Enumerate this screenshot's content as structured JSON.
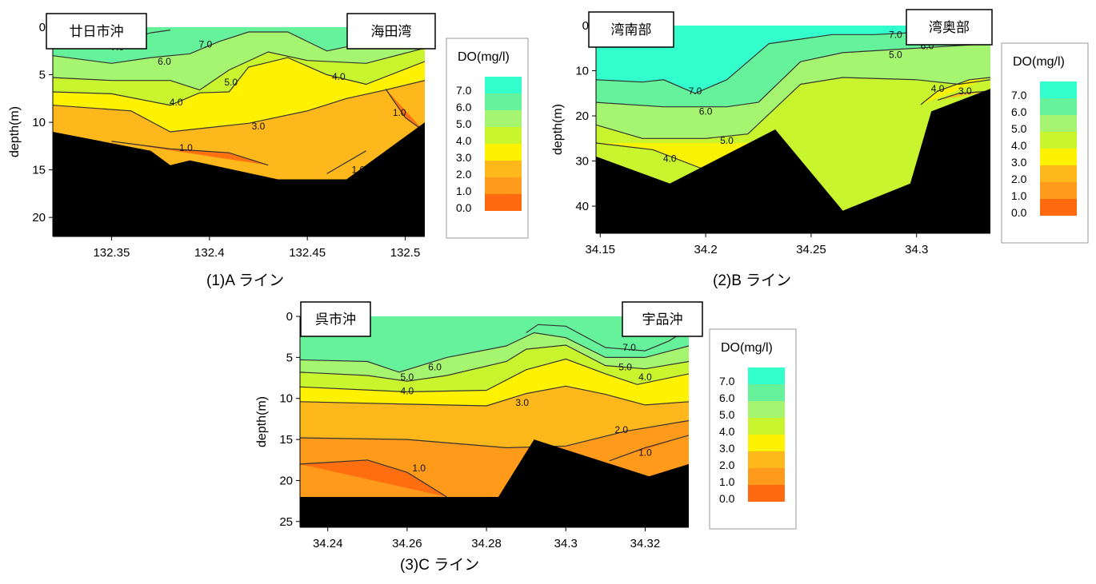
{
  "colors": {
    "do_scale": [
      "#ff6a10",
      "#ff9a1a",
      "#ffb81c",
      "#fff200",
      "#c8f52e",
      "#a6f570",
      "#66f29a",
      "#33ffcc"
    ],
    "seabed": "#000000",
    "contour_line": "#333333"
  },
  "legend": {
    "title": "DO(mg/l)",
    "levels": [
      "7.0",
      "6.0",
      "5.0",
      "4.0",
      "3.0",
      "2.0",
      "1.0",
      "0.0"
    ]
  },
  "chart_data": [
    {
      "type": "area",
      "caption": "(1)A ライン",
      "stations": [
        "廿日市沖",
        "海田湾"
      ],
      "ylabel": "depth(m)",
      "xlabel": "",
      "xlim": [
        132.32,
        132.51
      ],
      "ylim": [
        22,
        0
      ],
      "y_reversed": true,
      "xticks": [
        "132.35",
        "132.4",
        "132.45",
        "132.5"
      ],
      "xtick_values": [
        132.35,
        132.4,
        132.45,
        132.5
      ],
      "yticks": [
        "0",
        "5",
        "10",
        "15",
        "20"
      ],
      "ytick_values": [
        0,
        5,
        10,
        15,
        20
      ],
      "bottom_depth": [
        [
          132.32,
          11
        ],
        [
          132.37,
          13
        ],
        [
          132.38,
          14.5
        ],
        [
          132.39,
          14
        ],
        [
          132.435,
          16
        ],
        [
          132.47,
          16
        ],
        [
          132.51,
          10
        ]
      ],
      "isolines": [
        {
          "level": 7.0,
          "points": [
            [
              132.32,
              1.8
            ],
            [
              132.345,
              2
            ],
            [
              132.36,
              1.2
            ],
            [
              132.37,
              0.6
            ],
            [
              132.38,
              0.3
            ]
          ]
        },
        {
          "level": 6.0,
          "points": [
            [
              132.32,
              3
            ],
            [
              132.35,
              3.8
            ],
            [
              132.37,
              3.2
            ],
            [
              132.39,
              2.8
            ],
            [
              132.405,
              1.5
            ],
            [
              132.42,
              0.5
            ],
            [
              132.44,
              0.5
            ],
            [
              132.46,
              2.5
            ],
            [
              132.49,
              1.2
            ],
            [
              132.51,
              0.4
            ]
          ]
        },
        {
          "level": 5.0,
          "points": [
            [
              132.32,
              5.3
            ],
            [
              132.35,
              5.6
            ],
            [
              132.38,
              5.6
            ],
            [
              132.395,
              6.6
            ],
            [
              132.41,
              4.5
            ],
            [
              132.43,
              2.6
            ],
            [
              132.45,
              3.5
            ],
            [
              132.48,
              3.8
            ],
            [
              132.51,
              2.2
            ]
          ]
        },
        {
          "level": 4.0,
          "points": [
            [
              132.32,
              6.8
            ],
            [
              132.35,
              7
            ],
            [
              132.38,
              8.2
            ],
            [
              132.395,
              6.9
            ],
            [
              132.41,
              6.8
            ],
            [
              132.42,
              4.2
            ],
            [
              132.44,
              3.2
            ],
            [
              132.46,
              5
            ],
            [
              132.48,
              6
            ],
            [
              132.51,
              3.6
            ]
          ]
        },
        {
          "level": 3.0,
          "points": [
            [
              132.32,
              8.2
            ],
            [
              132.36,
              8.8
            ],
            [
              132.38,
              11
            ],
            [
              132.42,
              10.1
            ],
            [
              132.45,
              8.8
            ],
            [
              132.47,
              7.5
            ],
            [
              132.49,
              6.6
            ],
            [
              132.51,
              5.6
            ]
          ]
        },
        {
          "level": 1.0,
          "points": [
            [
              132.35,
              12
            ],
            [
              132.38,
              12.8
            ],
            [
              132.41,
              13.2
            ],
            [
              132.43,
              14.5
            ]
          ]
        },
        {
          "level": 1.0,
          "points": [
            [
              132.46,
              15.4
            ],
            [
              132.48,
              13
            ]
          ]
        },
        {
          "level": 1.0,
          "points": [
            [
              132.49,
              6.5
            ],
            [
              132.5,
              9.5
            ],
            [
              132.51,
              11
            ]
          ]
        }
      ],
      "labels": [
        {
          "text": "7.0",
          "x": 132.353,
          "y": 2.1
        },
        {
          "text": "6.0",
          "x": 132.377,
          "y": 3.6
        },
        {
          "text": "7.0",
          "x": 132.398,
          "y": 1.8
        },
        {
          "text": "5.0",
          "x": 132.411,
          "y": 5.8
        },
        {
          "text": "4.0",
          "x": 132.383,
          "y": 7.9
        },
        {
          "text": "4.0",
          "x": 132.466,
          "y": 5.2
        },
        {
          "text": "3.0",
          "x": 132.425,
          "y": 10.4
        },
        {
          "text": "1.0",
          "x": 132.388,
          "y": 12.7
        },
        {
          "text": "1.0",
          "x": 132.476,
          "y": 15
        },
        {
          "text": "1.0",
          "x": 132.497,
          "y": 9
        }
      ]
    },
    {
      "type": "area",
      "caption": "(2)B ライン",
      "stations": [
        "湾南部",
        "湾奥部"
      ],
      "ylabel": "depth(m)",
      "xlabel": "",
      "xlim": [
        34.148,
        34.335
      ],
      "ylim": [
        46,
        0
      ],
      "y_reversed": true,
      "xticks": [
        "34.15",
        "34.2",
        "34.25",
        "34.3"
      ],
      "xtick_values": [
        34.15,
        34.2,
        34.25,
        34.3
      ],
      "yticks": [
        "0",
        "10",
        "20",
        "30",
        "40"
      ],
      "ytick_values": [
        0,
        10,
        20,
        30,
        40
      ],
      "bottom_depth": [
        [
          34.148,
          29
        ],
        [
          34.183,
          35
        ],
        [
          34.233,
          23
        ],
        [
          34.265,
          41
        ],
        [
          34.297,
          35
        ],
        [
          34.307,
          19
        ],
        [
          34.335,
          14
        ]
      ],
      "isolines": [
        {
          "level": 7.0,
          "points": [
            [
              34.148,
              12
            ],
            [
              34.17,
              12.5
            ],
            [
              34.18,
              12
            ],
            [
              34.195,
              15
            ],
            [
              34.21,
              12
            ],
            [
              34.23,
              4
            ],
            [
              34.245,
              3
            ],
            [
              34.26,
              2
            ],
            [
              34.28,
              2
            ],
            [
              34.3,
              1.5
            ],
            [
              34.335,
              1.2
            ]
          ]
        },
        {
          "level": 6.0,
          "points": [
            [
              34.148,
              17
            ],
            [
              34.18,
              18
            ],
            [
              34.21,
              18
            ],
            [
              34.225,
              17
            ],
            [
              34.245,
              8
            ],
            [
              34.265,
              6
            ],
            [
              34.3,
              5
            ],
            [
              34.335,
              4
            ]
          ]
        },
        {
          "level": 5.0,
          "points": [
            [
              34.148,
              22
            ],
            [
              34.17,
              25
            ],
            [
              34.2,
              25
            ],
            [
              34.22,
              24
            ],
            [
              34.245,
              13
            ],
            [
              34.265,
              11.5
            ],
            [
              34.3,
              12
            ],
            [
              34.32,
              13
            ],
            [
              34.335,
              12
            ]
          ]
        },
        {
          "level": 4.0,
          "points": [
            [
              34.148,
              26
            ],
            [
              34.175,
              27.5
            ],
            [
              34.2,
              32
            ],
            [
              34.223,
              26
            ]
          ]
        },
        {
          "level": 3.0,
          "points": [
            [
              34.31,
              16.5
            ],
            [
              34.32,
              15
            ],
            [
              34.335,
              14.5
            ]
          ]
        },
        {
          "level": 4.0,
          "points": [
            [
              34.302,
              17.5
            ],
            [
              34.31,
              14.5
            ],
            [
              34.325,
              12
            ],
            [
              34.335,
              11.5
            ]
          ]
        }
      ],
      "labels": [
        {
          "text": "7.0",
          "x": 34.195,
          "y": 14.5
        },
        {
          "text": "6.0",
          "x": 34.2,
          "y": 19
        },
        {
          "text": "5.0",
          "x": 34.21,
          "y": 25.5
        },
        {
          "text": "4.0",
          "x": 34.183,
          "y": 29.5
        },
        {
          "text": "7.0",
          "x": 34.29,
          "y": 2
        },
        {
          "text": "6.0",
          "x": 34.305,
          "y": 4.5
        },
        {
          "text": "5.0",
          "x": 34.29,
          "y": 6.5
        },
        {
          "text": "4.0",
          "x": 34.31,
          "y": 14
        },
        {
          "text": "3.0",
          "x": 34.323,
          "y": 14.5
        }
      ]
    },
    {
      "type": "area",
      "caption": "(3)C ライン",
      "stations": [
        "呉市沖",
        "宇品沖"
      ],
      "ylabel": "depth(m)",
      "xlabel": "",
      "xlim": [
        34.233,
        34.331
      ],
      "ylim": [
        25.7,
        0
      ],
      "y_reversed": true,
      "xticks": [
        "34.24",
        "34.26",
        "34.28",
        "34.3",
        "34.32"
      ],
      "xtick_values": [
        34.24,
        34.26,
        34.28,
        34.3,
        34.32
      ],
      "yticks": [
        "0",
        "5",
        "10",
        "15",
        "20",
        "25"
      ],
      "ytick_values": [
        0,
        5,
        10,
        15,
        20,
        25
      ],
      "bottom_depth": [
        [
          34.233,
          22
        ],
        [
          34.283,
          22
        ],
        [
          34.292,
          15
        ],
        [
          34.321,
          19.5
        ],
        [
          34.331,
          18
        ]
      ],
      "isolines": [
        {
          "level": 7.0,
          "points": [
            [
              34.29,
              2
            ],
            [
              34.293,
              1
            ],
            [
              34.3,
              1.2
            ],
            [
              34.31,
              3.8
            ],
            [
              34.32,
              4.2
            ],
            [
              34.326,
              3
            ],
            [
              34.331,
              1.5
            ]
          ]
        },
        {
          "level": 6.0,
          "points": [
            [
              34.233,
              5.3
            ],
            [
              34.25,
              5.5
            ],
            [
              34.258,
              6.8
            ],
            [
              34.27,
              5
            ],
            [
              34.285,
              3.6
            ],
            [
              34.292,
              2
            ],
            [
              34.3,
              2.6
            ],
            [
              34.31,
              5
            ],
            [
              34.32,
              5
            ],
            [
              34.331,
              3.6
            ]
          ]
        },
        {
          "level": 5.0,
          "points": [
            [
              34.233,
              6.8
            ],
            [
              34.25,
              7.2
            ],
            [
              34.26,
              7.9
            ],
            [
              34.27,
              7.2
            ],
            [
              34.285,
              5.5
            ],
            [
              34.29,
              4
            ],
            [
              34.3,
              3.5
            ],
            [
              34.31,
              6
            ],
            [
              34.32,
              6.4
            ],
            [
              34.331,
              5.5
            ]
          ]
        },
        {
          "level": 4.0,
          "points": [
            [
              34.233,
              8.6
            ],
            [
              34.26,
              9.2
            ],
            [
              34.28,
              9
            ],
            [
              34.29,
              6.5
            ],
            [
              34.3,
              5.2
            ],
            [
              34.31,
              7
            ],
            [
              34.318,
              8.3
            ],
            [
              34.331,
              7
            ]
          ]
        },
        {
          "level": 3.0,
          "points": [
            [
              34.233,
              10.4
            ],
            [
              34.26,
              10.7
            ],
            [
              34.28,
              10.9
            ],
            [
              34.29,
              9.4
            ],
            [
              34.3,
              8.5
            ],
            [
              34.31,
              9.5
            ],
            [
              34.32,
              10.8
            ],
            [
              34.331,
              10.4
            ]
          ]
        },
        {
          "level": 2.0,
          "points": [
            [
              34.233,
              14.8
            ],
            [
              34.26,
              15
            ],
            [
              34.285,
              16
            ],
            [
              34.3,
              15.8
            ],
            [
              34.315,
              14
            ],
            [
              34.331,
              12.7
            ]
          ]
        },
        {
          "level": 1.0,
          "points": [
            [
              34.233,
              18
            ],
            [
              34.25,
              17.5
            ],
            [
              34.26,
              19
            ],
            [
              34.27,
              22
            ]
          ]
        },
        {
          "level": 1.0,
          "points": [
            [
              34.311,
              17.6
            ],
            [
              34.32,
              16
            ],
            [
              34.331,
              14.5
            ]
          ]
        }
      ],
      "labels": [
        {
          "text": "6.0",
          "x": 34.267,
          "y": 6.2
        },
        {
          "text": "5.0",
          "x": 34.26,
          "y": 7.4
        },
        {
          "text": "4.0",
          "x": 34.26,
          "y": 9.1
        },
        {
          "text": "3.0",
          "x": 34.289,
          "y": 10.5
        },
        {
          "text": "7.0",
          "x": 34.316,
          "y": 3.8
        },
        {
          "text": "5.0",
          "x": 34.315,
          "y": 6.2
        },
        {
          "text": "4.0",
          "x": 34.32,
          "y": 7.4
        },
        {
          "text": "2.0",
          "x": 34.314,
          "y": 13.8
        },
        {
          "text": "1.0",
          "x": 34.32,
          "y": 16.6
        },
        {
          "text": "1.0",
          "x": 34.263,
          "y": 18.5
        }
      ]
    }
  ]
}
